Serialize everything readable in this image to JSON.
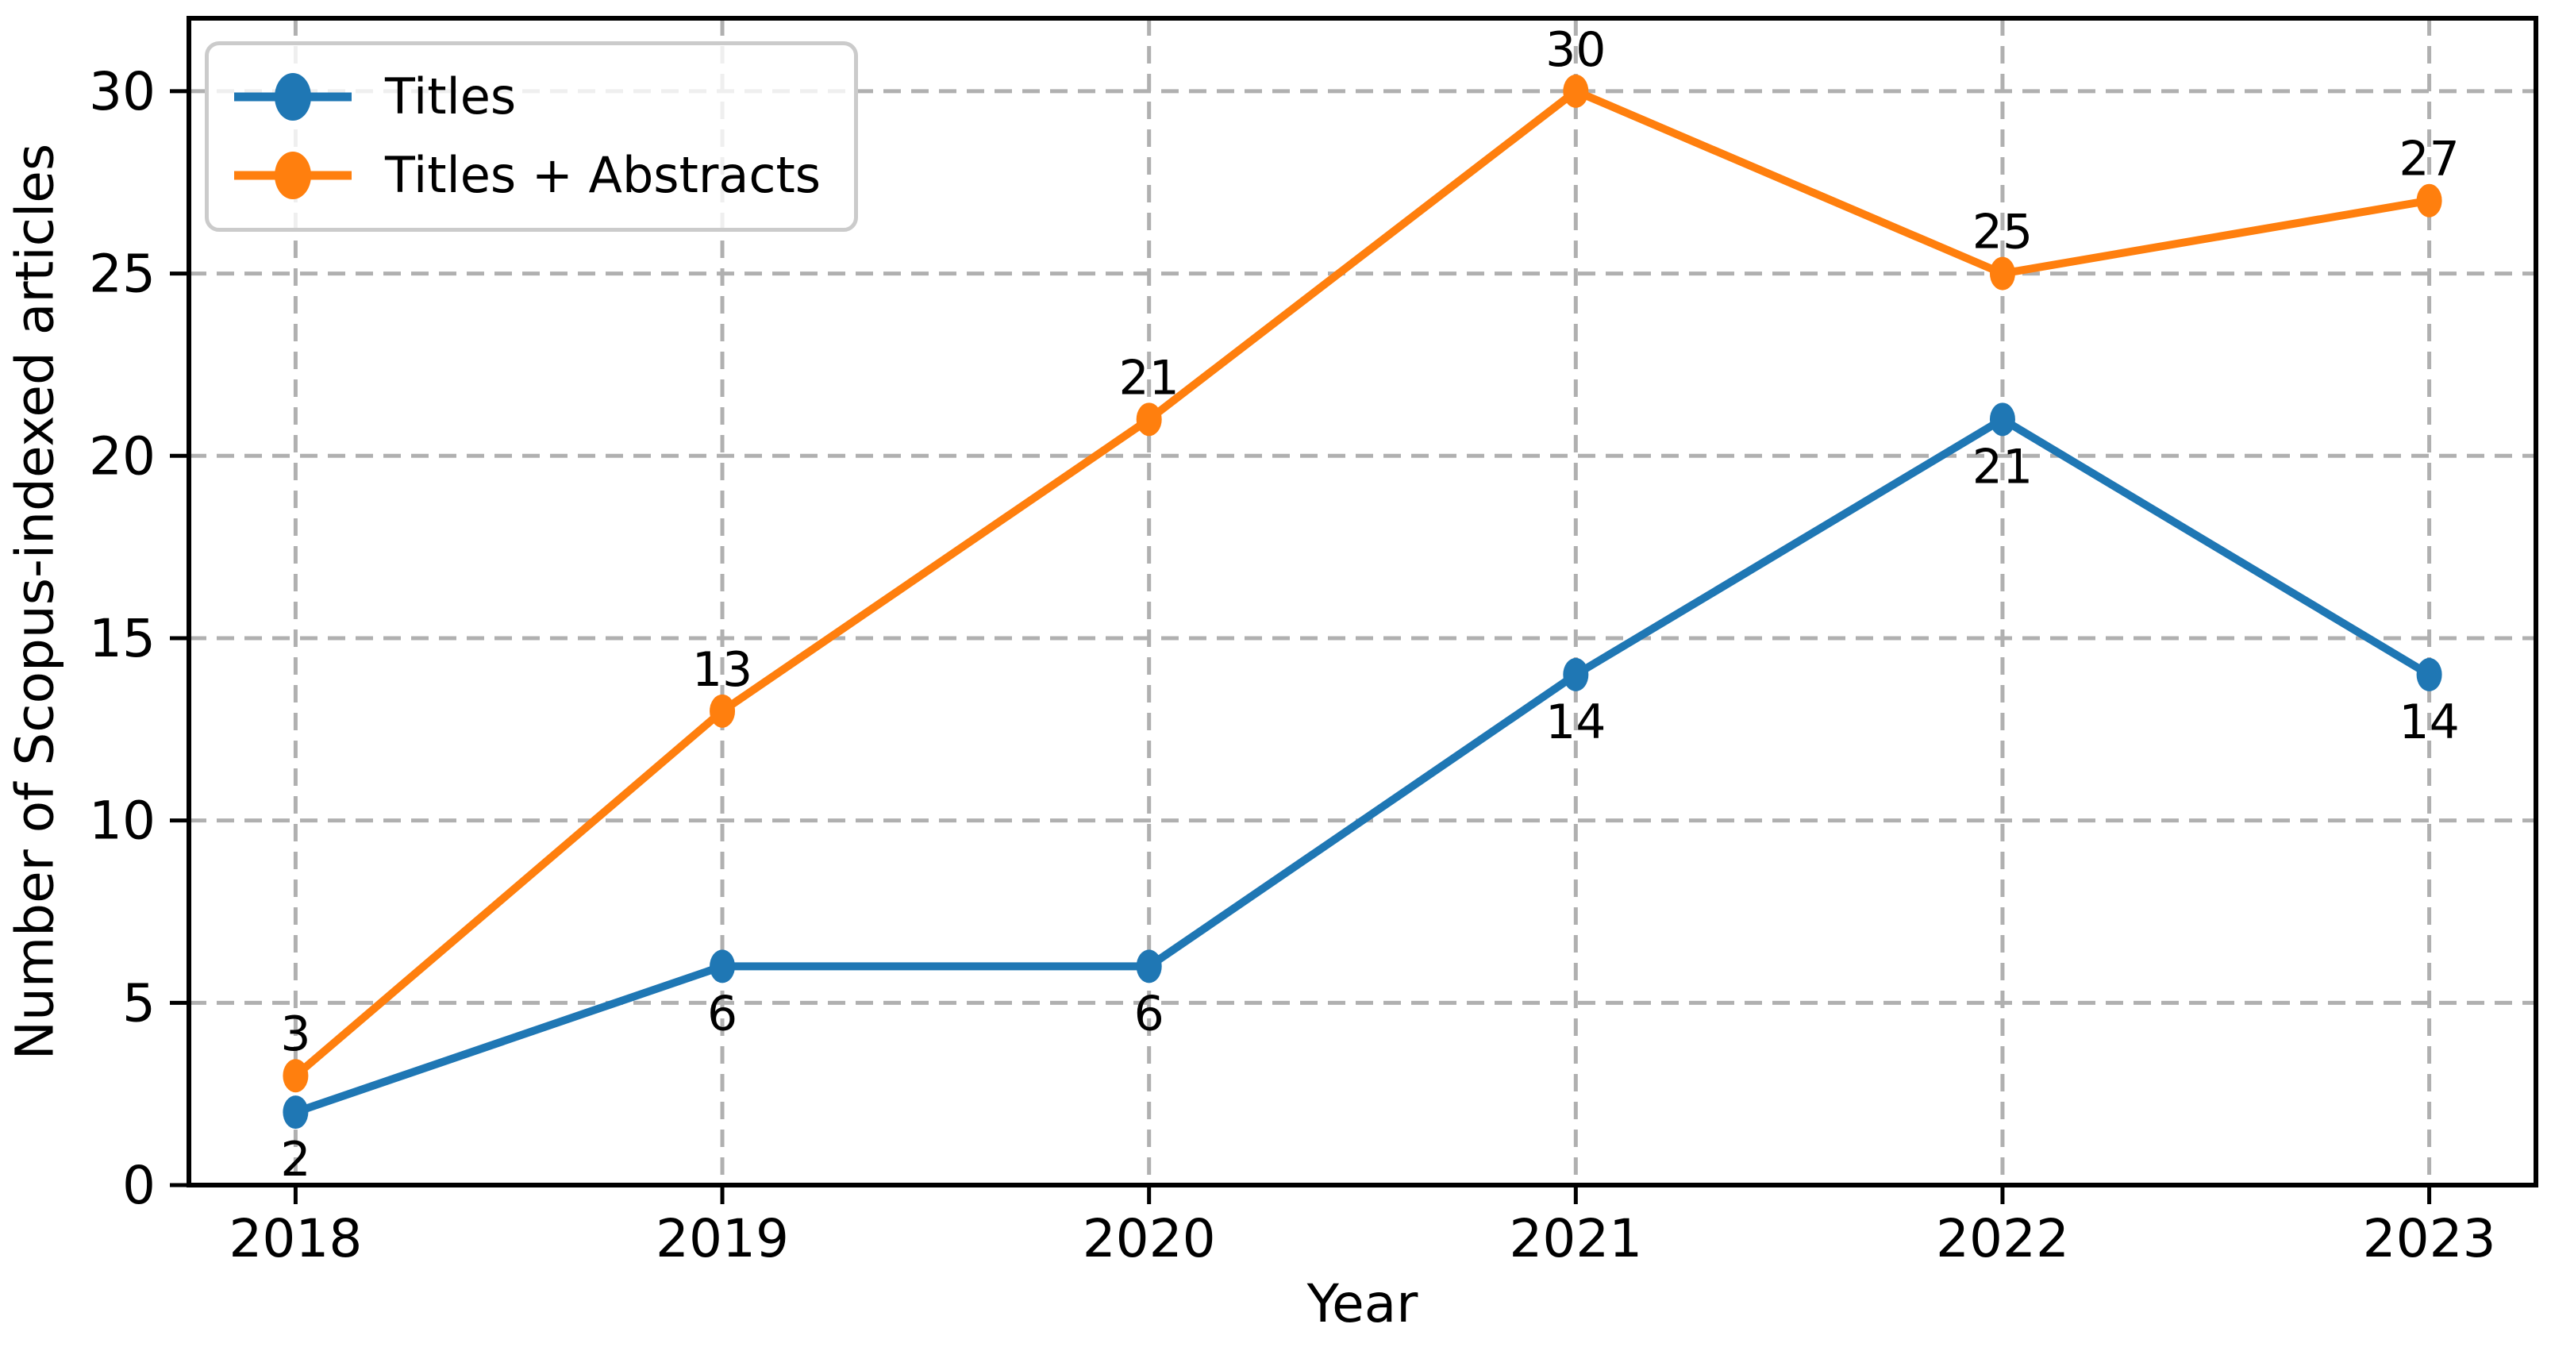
{
  "figure": {
    "background": "#ffffff"
  },
  "chart_data": {
    "type": "line",
    "title": "",
    "xlabel": "Year",
    "ylabel": "Number of Scopus-indexed articles",
    "categories": [
      "2018",
      "2019",
      "2020",
      "2021",
      "2022",
      "2023"
    ],
    "series": [
      {
        "name": "Titles",
        "color": "#1f77b4",
        "values": [
          2,
          6,
          6,
          14,
          21,
          14
        ],
        "value_label_position": "below"
      },
      {
        "name": "Titles + Abstracts",
        "color": "#ff7f0e",
        "values": [
          3,
          13,
          21,
          30,
          25,
          27
        ],
        "value_label_position": "above"
      }
    ],
    "ylim": [
      0,
      32
    ],
    "yticks": [
      0,
      5,
      10,
      15,
      20,
      25,
      30
    ],
    "grid": true,
    "grid_style": "dashed",
    "grid_color": "#b0b0b0",
    "axis_color": "#000000",
    "text_color": "#000000",
    "legend_position": "upper left"
  }
}
